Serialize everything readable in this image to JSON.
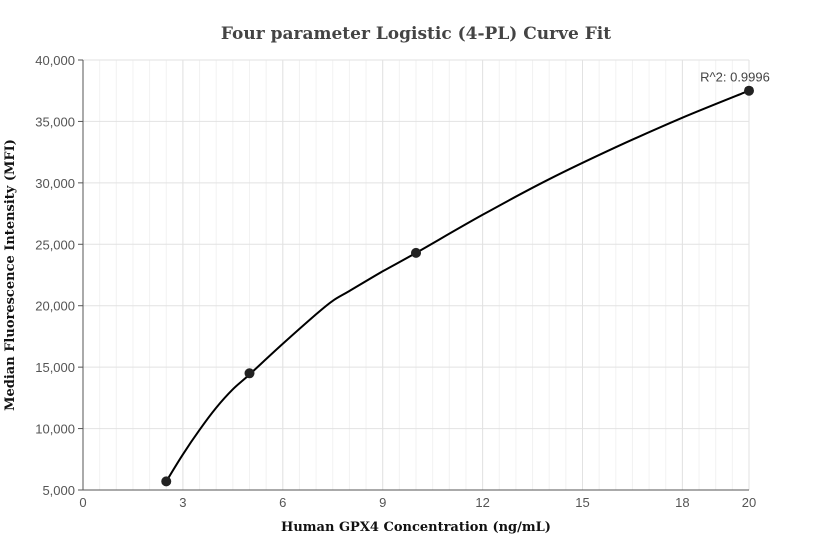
{
  "chart_data": {
    "type": "scatter",
    "title": "Four parameter Logistic (4-PL) Curve Fit",
    "xlabel": "Human GPX4 Concentration (ng/mL)",
    "ylabel": "Median Fluorescence Intensity (MFI)",
    "xlim": [
      0,
      20
    ],
    "ylim": [
      5000,
      40000
    ],
    "x_ticks": [
      0,
      3,
      6,
      9,
      12,
      15,
      18,
      20
    ],
    "x_tick_labels": [
      "0",
      "3",
      "6",
      "9",
      "12",
      "15",
      "18",
      "20"
    ],
    "y_ticks": [
      5000,
      10000,
      15000,
      20000,
      25000,
      30000,
      35000,
      40000
    ],
    "y_tick_labels": [
      "5,000",
      "10,000",
      "15,000",
      "20,000",
      "25,000",
      "30,000",
      "35,000",
      "40,000"
    ],
    "grid": true,
    "series": [
      {
        "x": [
          2.5,
          5,
          10,
          20
        ],
        "y": [
          5700,
          14500,
          24300,
          37500
        ],
        "marker_color": "#222222"
      }
    ],
    "fit_curve": {
      "x": [
        2.5,
        3,
        3.5,
        4,
        4.5,
        5,
        6,
        7,
        7.5,
        8,
        9,
        10,
        12,
        14,
        16,
        18,
        20
      ],
      "y": [
        5700,
        7900,
        9900,
        11700,
        13200,
        14400,
        16900,
        19300,
        20400,
        21200,
        22800,
        24300,
        27400,
        30300,
        32900,
        35300,
        37500
      ],
      "color": "#000000"
    },
    "annotations": [
      {
        "text": "R^2: 0.9996",
        "x": 20,
        "y": 37500
      }
    ]
  }
}
